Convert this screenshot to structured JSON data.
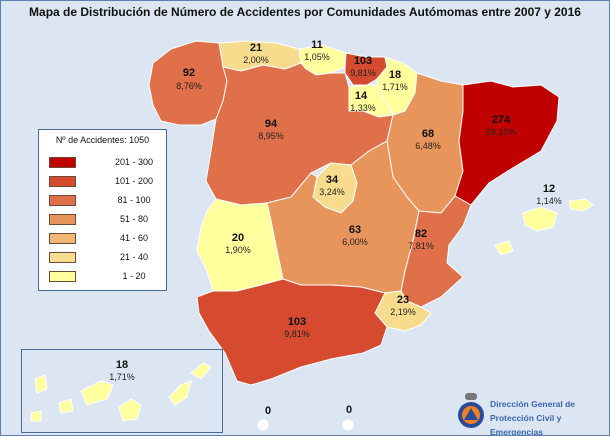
{
  "title": "Mapa de Distribución de Número de Accidentes por Comunidades Autómomas entre 2007 y 2016",
  "legend": {
    "title": "Nº de Accidentes: 1050",
    "classes": [
      {
        "range": "201  -  300",
        "color": "#c00000"
      },
      {
        "range": "101  -  200",
        "color": "#d64b2f"
      },
      {
        "range": "81  -  100",
        "color": "#e0704a"
      },
      {
        "range": "51  -  80",
        "color": "#e8955c"
      },
      {
        "range": "41  -  60",
        "color": "#f0b872"
      },
      {
        "range": "21  -  40",
        "color": "#f8dc8e"
      },
      {
        "range": "1  -  20",
        "color": "#ffff9e"
      }
    ]
  },
  "regions": {
    "galicia": {
      "count": "92",
      "pct": "8,76%",
      "color": "#e0704a"
    },
    "asturias": {
      "count": "21",
      "pct": "2,00%",
      "color": "#f8dc8e"
    },
    "cantabria": {
      "count": "11",
      "pct": "1,05%",
      "color": "#ffff9e"
    },
    "pais_vasco": {
      "count": "103",
      "pct": "9,81%",
      "color": "#d64b2f"
    },
    "navarra": {
      "count": "18",
      "pct": "1,71%",
      "color": "#ffff9e"
    },
    "la_rioja": {
      "count": "14",
      "pct": "1,33%",
      "color": "#ffff9e"
    },
    "castilla_leon": {
      "count": "94",
      "pct": "8,95%",
      "color": "#e0704a"
    },
    "aragon": {
      "count": "68",
      "pct": "6,48%",
      "color": "#e8955c"
    },
    "cataluna": {
      "count": "274",
      "pct": "26,10%",
      "color": "#c00000"
    },
    "madrid": {
      "count": "34",
      "pct": "3,24%",
      "color": "#f8dc8e"
    },
    "extremadura": {
      "count": "20",
      "pct": "1,90%",
      "color": "#ffff9e"
    },
    "castilla_la_mancha": {
      "count": "63",
      "pct": "6,00%",
      "color": "#e8955c"
    },
    "valencia": {
      "count": "82",
      "pct": "7,81%",
      "color": "#e0704a"
    },
    "murcia": {
      "count": "23",
      "pct": "2,19%",
      "color": "#f8dc8e"
    },
    "andalucia": {
      "count": "103",
      "pct": "9,81%",
      "color": "#d64b2f"
    },
    "baleares": {
      "count": "12",
      "pct": "1,14%",
      "color": "#ffff9e"
    },
    "canarias": {
      "count": "18",
      "pct": "1,71%",
      "color": "#ffff9e"
    },
    "ceuta": {
      "count": "0",
      "color": "#ffffff"
    },
    "melilla": {
      "count": "0",
      "color": "#ffffff"
    }
  },
  "logo": {
    "line1": "Dirección General de",
    "line2": "Protección Civil y Emergencias"
  }
}
